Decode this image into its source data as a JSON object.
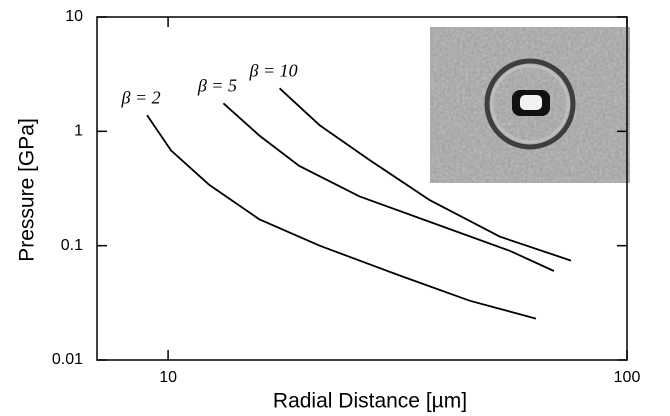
{
  "chart_data": {
    "type": "line",
    "xlabel": "Radial Distance [µm]",
    "ylabel": "Pressure [GPa]",
    "xscale": "log",
    "yscale": "log",
    "xlim": [
      7,
      100
    ],
    "ylim": [
      0.01,
      10
    ],
    "xticks": [
      10,
      100
    ],
    "yticks": [
      0.01,
      0.1,
      1,
      10
    ],
    "series": [
      {
        "name": "β = 2",
        "color": "#000000",
        "x": [
          9.0,
          10.15,
          12.3,
          15.8,
          21.4,
          31.9,
          45.4,
          63.3
        ],
        "values": [
          1.38,
          0.68,
          0.34,
          0.17,
          0.1,
          0.055,
          0.033,
          0.023
        ]
      },
      {
        "name": "β = 5",
        "color": "#000000",
        "x": [
          13.2,
          15.8,
          19.3,
          26.1,
          39.1,
          55.6,
          69.3
        ],
        "values": [
          1.76,
          0.92,
          0.5,
          0.27,
          0.15,
          0.09,
          0.06
        ]
      },
      {
        "name": "β = 10",
        "color": "#000000",
        "x": [
          17.5,
          21.4,
          27.5,
          37.2,
          52.8,
          75.5
        ],
        "values": [
          2.38,
          1.13,
          0.56,
          0.25,
          0.12,
          0.074
        ]
      }
    ]
  }
}
